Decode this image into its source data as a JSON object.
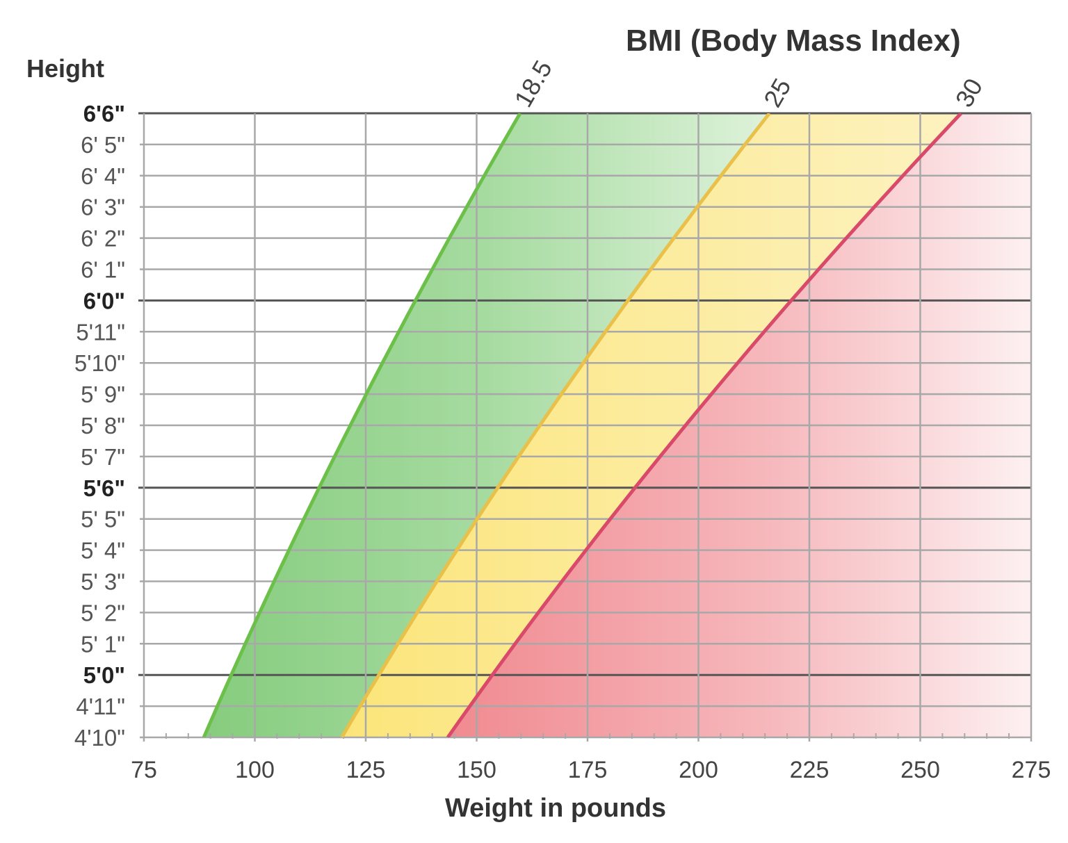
{
  "chart_data": {
    "type": "area",
    "title": "BMI (Body Mass Index)",
    "xlabel": "Weight in pounds",
    "ylabel": "Height",
    "xlim": [
      75,
      275
    ],
    "ylim": [
      58,
      78
    ],
    "x_ticks": [
      75,
      100,
      125,
      150,
      175,
      200,
      225,
      250,
      275
    ],
    "y_ticks": [
      {
        "inches": 78,
        "label": "6'6\"",
        "bold": true
      },
      {
        "inches": 77,
        "label": "6' 5\"",
        "bold": false
      },
      {
        "inches": 76,
        "label": "6' 4\"",
        "bold": false
      },
      {
        "inches": 75,
        "label": "6' 3\"",
        "bold": false
      },
      {
        "inches": 74,
        "label": "6' 2\"",
        "bold": false
      },
      {
        "inches": 73,
        "label": "6' 1\"",
        "bold": false
      },
      {
        "inches": 72,
        "label": "6'0\"",
        "bold": true
      },
      {
        "inches": 71,
        "label": "5'11\"",
        "bold": false
      },
      {
        "inches": 70,
        "label": "5'10\"",
        "bold": false
      },
      {
        "inches": 69,
        "label": "5' 9\"",
        "bold": false
      },
      {
        "inches": 68,
        "label": "5' 8\"",
        "bold": false
      },
      {
        "inches": 67,
        "label": "5' 7\"",
        "bold": false
      },
      {
        "inches": 66,
        "label": "5'6\"",
        "bold": true
      },
      {
        "inches": 65,
        "label": "5' 5\"",
        "bold": false
      },
      {
        "inches": 64,
        "label": "5' 4\"",
        "bold": false
      },
      {
        "inches": 63,
        "label": "5' 3\"",
        "bold": false
      },
      {
        "inches": 62,
        "label": "5' 2\"",
        "bold": false
      },
      {
        "inches": 61,
        "label": "5' 1\"",
        "bold": false
      },
      {
        "inches": 60,
        "label": "5'0\"",
        "bold": true
      },
      {
        "inches": 59,
        "label": "4'11\"",
        "bold": false
      },
      {
        "inches": 58,
        "label": "4'10\"",
        "bold": false
      }
    ],
    "series": [
      {
        "name": "18.5",
        "bmi": 18.5,
        "color": "#6cc04a",
        "x_at_bottom": 88.5,
        "x_at_top": 159.8
      },
      {
        "name": "25",
        "bmi": 25,
        "color": "#e8c04a",
        "x_at_bottom": 119.6,
        "x_at_top": 216.0
      },
      {
        "name": "30",
        "bmi": 30,
        "color": "#d94a6a",
        "x_at_bottom": 143.5,
        "x_at_top": 259.2
      }
    ],
    "zone_colors": {
      "normal": "#a8dca0",
      "overweight": "#fbe98a",
      "obese": "#f4a0a4"
    },
    "grid": true
  }
}
